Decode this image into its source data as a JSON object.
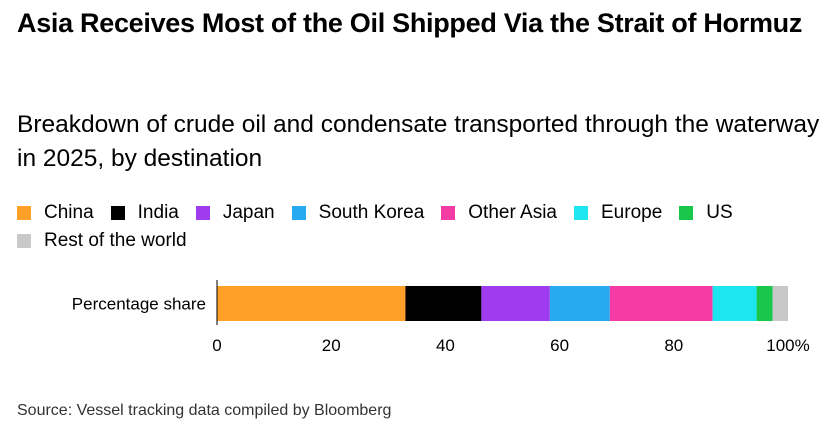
{
  "title": "Asia Receives Most of the Oil Shipped Via the Strait of Hormuz",
  "subtitle": "Breakdown of crude oil and condensate transported through the waterway in 2025, by destination",
  "source": "Source: Vessel tracking data compiled by Bloomberg",
  "chart_data": {
    "type": "bar",
    "orientation": "horizontal",
    "stacked": true,
    "title": "Asia Receives Most of the Oil Shipped Via the Strait of Hormuz",
    "subtitle": "Breakdown of crude oil and condensate transported through the waterway in 2025, by destination",
    "categories": [
      "Percentage share"
    ],
    "series": [
      {
        "name": "China",
        "values": [
          33
        ],
        "color": "#FFA028"
      },
      {
        "name": "India",
        "values": [
          13.3
        ],
        "color": "#000000"
      },
      {
        "name": "Japan",
        "values": [
          12
        ],
        "color": "#A03CF0"
      },
      {
        "name": "South Korea",
        "values": [
          10.5
        ],
        "color": "#28AAF0"
      },
      {
        "name": "Other Asia",
        "values": [
          18
        ],
        "color": "#F53CA5"
      },
      {
        "name": "Europe",
        "values": [
          7.7
        ],
        "color": "#1EE6F0"
      },
      {
        "name": "US",
        "values": [
          2.8
        ],
        "color": "#19C84B"
      },
      {
        "name": "Rest of the world",
        "values": [
          2.7
        ],
        "color": "#C8C8C8"
      }
    ],
    "xlim": [
      0,
      100
    ],
    "xticks": [
      0,
      20,
      40,
      60,
      80,
      100
    ],
    "xtick_labels": [
      "0",
      "20",
      "40",
      "60",
      "80",
      "100%"
    ],
    "xlabel": "",
    "ylabel": "",
    "legend_position": "top",
    "grid": false
  }
}
